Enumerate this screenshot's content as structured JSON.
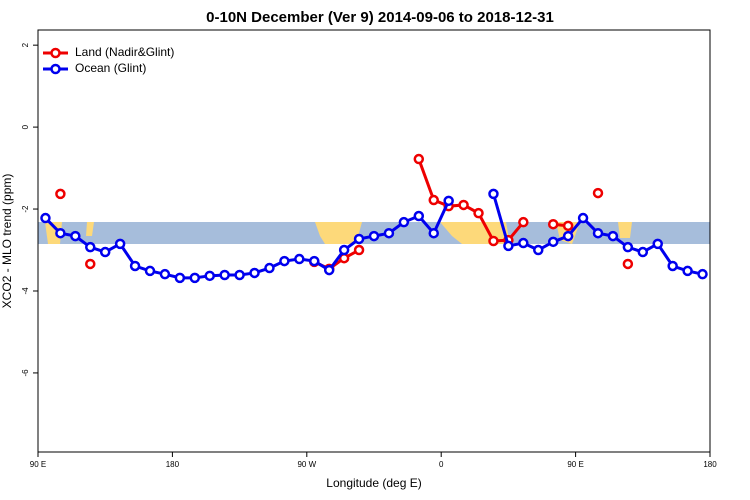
{
  "chart_data": {
    "type": "line",
    "title": "0-10N December (Ver 9)   2014-09-06 to 2018-12-31",
    "xlabel": "Longitude (deg E)",
    "ylabel": "XCO2 - MLO trend (ppm)",
    "x": [
      95,
      105,
      115,
      125,
      135,
      145,
      155,
      165,
      175,
      185,
      195,
      205,
      215,
      225,
      235,
      245,
      255,
      265,
      275,
      285,
      295,
      305,
      315,
      325,
      335,
      345,
      355,
      365,
      375,
      385,
      395,
      405,
      415,
      425,
      435,
      445,
      455,
      465,
      475,
      485,
      495,
      505,
      515,
      525,
      535
    ],
    "series": [
      {
        "name": "Land (Nadir&Glint)",
        "color": "#ee0000",
        "values": [
          null,
          -1.63,
          null,
          -3.34,
          null,
          null,
          null,
          null,
          null,
          null,
          null,
          null,
          null,
          null,
          null,
          null,
          null,
          null,
          -3.29,
          -3.46,
          -3.2,
          -3.0,
          null,
          null,
          null,
          -0.78,
          -1.78,
          -1.93,
          -1.9,
          -2.1,
          -2.78,
          -2.76,
          -2.32,
          null,
          -2.37,
          -2.41,
          null,
          -1.61,
          null,
          -3.34,
          null,
          null,
          null,
          null,
          null
        ]
      },
      {
        "name": "Ocean (Glint)",
        "color": "#0000ee",
        "values": [
          -2.22,
          -2.59,
          -2.66,
          -2.93,
          -3.05,
          -2.85,
          -3.39,
          -3.51,
          -3.59,
          -3.68,
          -3.68,
          -3.63,
          -3.61,
          -3.61,
          -3.56,
          -3.44,
          -3.27,
          -3.22,
          -3.27,
          -3.49,
          -3.0,
          -2.73,
          -2.66,
          -2.59,
          -2.32,
          -2.17,
          -2.59,
          -1.8,
          null,
          null,
          -1.63,
          -2.9,
          -2.83,
          -3.0,
          -2.8,
          -2.66,
          -2.22,
          -2.59,
          -2.66,
          -2.93,
          -3.05,
          -2.85,
          -3.39,
          -3.51,
          -3.59
        ]
      }
    ],
    "xlim": [
      90,
      540
    ],
    "xticks": [
      {
        "value": 90,
        "label": "90 E"
      },
      180,
      {
        "value": 270,
        "label": "90 W"
      },
      {
        "value": 360,
        "label": "0"
      },
      {
        "value": 450,
        "label": "90 E"
      },
      {
        "value": 540,
        "label": "180"
      }
    ],
    "ylim": [
      -7.93,
      2.37
    ],
    "yticks": [
      2,
      0,
      -2,
      -4,
      -6
    ],
    "legend": "upper left"
  }
}
